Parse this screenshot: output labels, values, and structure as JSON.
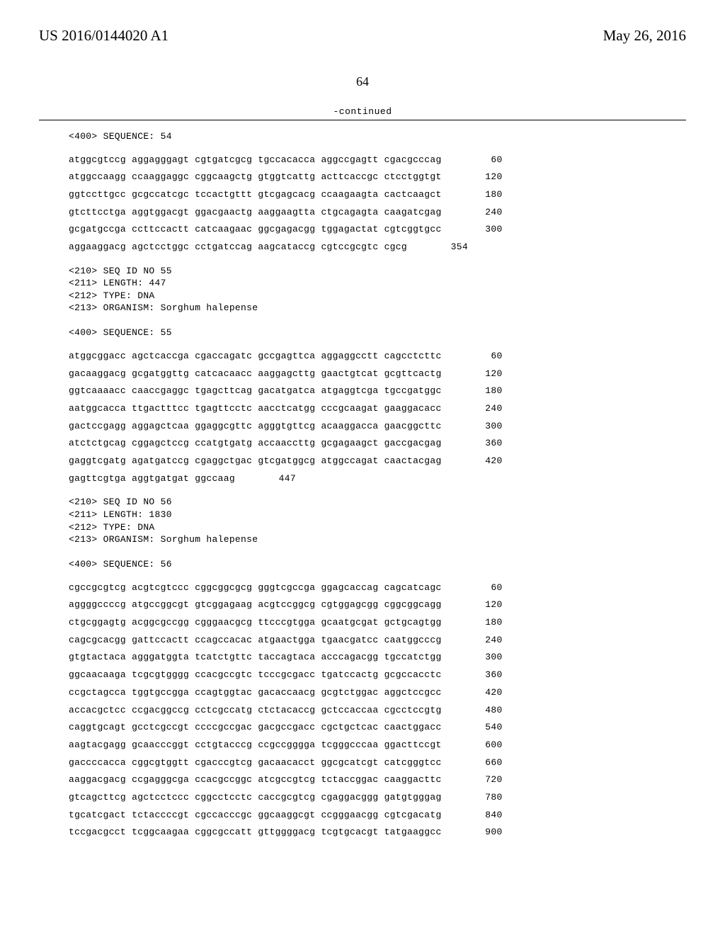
{
  "header": {
    "pub_number": "US 2016/0144020 A1",
    "pub_date": "May 26, 2016"
  },
  "page_number": "64",
  "continued_label": "-continued",
  "blocks": [
    {
      "type": "meta",
      "lines": [
        "<400> SEQUENCE: 54"
      ]
    },
    {
      "type": "seq",
      "rows": [
        {
          "b": "atggcgtccg aggagggagt cgtgatcgcg tgccacacca aggccgagtt cgacgcccag",
          "p": "60"
        },
        {
          "b": "atggccaagg ccaaggaggc cggcaagctg gtggtcattg acttcaccgc ctcctggtgt",
          "p": "120"
        },
        {
          "b": "ggtccttgcc gcgccatcgc tccactgttt gtcgagcacg ccaagaagta cactcaagct",
          "p": "180"
        },
        {
          "b": "gtcttcctga aggtggacgt ggacgaactg aaggaagtta ctgcagagta caagatcgag",
          "p": "240"
        },
        {
          "b": "gcgatgccga ccttccactt catcaagaac ggcgagacgg tggagactat cgtcggtgcc",
          "p": "300"
        },
        {
          "b": "aggaaggacg agctcctggc cctgatccag aagcataccg cgtccgcgtc cgcg",
          "p": "354"
        }
      ]
    },
    {
      "type": "meta",
      "lines": [
        "<210> SEQ ID NO 55",
        "<211> LENGTH: 447",
        "<212> TYPE: DNA",
        "<213> ORGANISM: Sorghum halepense",
        "",
        "<400> SEQUENCE: 55"
      ]
    },
    {
      "type": "seq",
      "rows": [
        {
          "b": "atggcggacc agctcaccga cgaccagatc gccgagttca aggaggcctt cagcctcttc",
          "p": "60"
        },
        {
          "b": "gacaaggacg gcgatggttg catcacaacc aaggagcttg gaactgtcat gcgttcactg",
          "p": "120"
        },
        {
          "b": "ggtcaaaacc caaccgaggc tgagcttcag gacatgatca atgaggtcga tgccgatggc",
          "p": "180"
        },
        {
          "b": "aatggcacca ttgactttcc tgagttcctc aacctcatgg cccgcaagat gaaggacacc",
          "p": "240"
        },
        {
          "b": "gactccgagg aggagctcaa ggaggcgttc agggtgttcg acaaggacca gaacggcttc",
          "p": "300"
        },
        {
          "b": "atctctgcag cggagctccg ccatgtgatg accaaccttg gcgagaagct gaccgacgag",
          "p": "360"
        },
        {
          "b": "gaggtcgatg agatgatccg cgaggctgac gtcgatggcg atggccagat caactacgag",
          "p": "420"
        },
        {
          "b": "gagttcgtga aggtgatgat ggccaag",
          "p": "447"
        }
      ]
    },
    {
      "type": "meta",
      "lines": [
        "<210> SEQ ID NO 56",
        "<211> LENGTH: 1830",
        "<212> TYPE: DNA",
        "<213> ORGANISM: Sorghum halepense",
        "",
        "<400> SEQUENCE: 56"
      ]
    },
    {
      "type": "seq",
      "rows": [
        {
          "b": "cgccgcgtcg acgtcgtccc cggcggcgcg gggtcgccga ggagcaccag cagcatcagc",
          "p": "60"
        },
        {
          "b": "aggggccccg atgccggcgt gtcggagaag acgtccggcg cgtggagcgg cggcggcagg",
          "p": "120"
        },
        {
          "b": "ctgcggagtg acggcgccgg cgggaacgcg ttcccgtgga gcaatgcgat gctgcagtgg",
          "p": "180"
        },
        {
          "b": "cagcgcacgg gattccactt ccagccacac atgaactgga tgaacgatcc caatggcccg",
          "p": "240"
        },
        {
          "b": "gtgtactaca agggatggta tcatctgttc taccagtaca acccagacgg tgccatctgg",
          "p": "300"
        },
        {
          "b": "ggcaacaaga tcgcgtgggg ccacgccgtc tcccgcgacc tgatccactg gcgccacctc",
          "p": "360"
        },
        {
          "b": "ccgctagcca tggtgccgga ccagtggtac gacaccaacg gcgtctggac aggctccgcc",
          "p": "420"
        },
        {
          "b": "accacgctcc ccgacggccg cctcgccatg ctctacaccg gctccaccaa cgcctccgtg",
          "p": "480"
        },
        {
          "b": "caggtgcagt gcctcgccgt ccccgccgac gacgccgacc cgctgctcac caactggacc",
          "p": "540"
        },
        {
          "b": "aagtacgagg gcaacccggt cctgtacccg ccgccgggga tcgggcccaa ggacttccgt",
          "p": "600"
        },
        {
          "b": "gaccccacca cggcgtggtt cgacccgtcg gacaacacct ggcgcatcgt catcgggtcc",
          "p": "660"
        },
        {
          "b": "aaggacgacg ccgagggcga ccacgccggc atcgccgtcg tctaccggac caaggacttc",
          "p": "720"
        },
        {
          "b": "gtcagcttcg agctcctccc cggcctcctc caccgcgtcg cgaggacggg gatgtgggag",
          "p": "780"
        },
        {
          "b": "tgcatcgact tctaccccgt cgccacccgc ggcaaggcgt ccgggaacgg cgtcgacatg",
          "p": "840"
        },
        {
          "b": "tccgacgcct tcggcaagaa cggcgccatt gttggggacg tcgtgcacgt tatgaaggcc",
          "p": "900"
        }
      ]
    }
  ]
}
